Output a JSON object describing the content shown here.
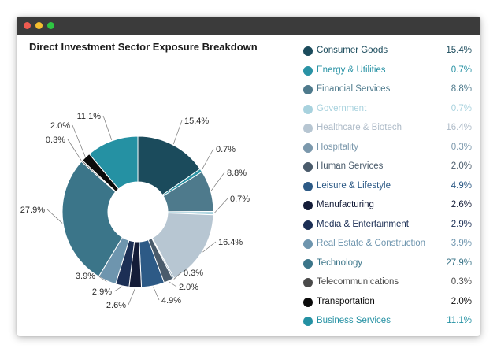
{
  "window": {
    "controls": [
      "close-dot",
      "minimize-dot",
      "maximize-dot"
    ],
    "titlebar_color": "#3b3b3b"
  },
  "chart_data": {
    "type": "pie",
    "variant": "donut",
    "title": "Direct Investment Sector Exposure Breakdown",
    "legend_placement": "right",
    "slices": [
      {
        "label": "Consumer Goods",
        "value": 15.4,
        "display": "15.4%",
        "color": "#1b4b5c",
        "text_color": "#1b4b5c"
      },
      {
        "label": "Energy & Utilities",
        "value": 0.7,
        "display": "0.7%",
        "color": "#2a93a5",
        "text_color": "#2a93a5"
      },
      {
        "label": "Financial Services",
        "value": 8.8,
        "display": "8.8%",
        "color": "#4e7a8c",
        "text_color": "#4e7a8c"
      },
      {
        "label": "Government",
        "value": 0.7,
        "display": "0.7%",
        "color": "#a8d2de",
        "text_color": "#a8d2de"
      },
      {
        "label": "Healthcare & Biotech",
        "value": 16.4,
        "display": "16.4%",
        "color": "#b7c6d2",
        "text_color": "#aebbc8"
      },
      {
        "label": "Hospitality",
        "value": 0.3,
        "display": "0.3%",
        "color": "#7b98ac",
        "text_color": "#7b98ac"
      },
      {
        "label": "Human Services",
        "value": 2.0,
        "display": "2.0%",
        "color": "#4a5b6b",
        "text_color": "#4a5b6b"
      },
      {
        "label": "Leisure & Lifestyle",
        "value": 4.9,
        "display": "4.9%",
        "color": "#2d5a86",
        "text_color": "#2d5a86"
      },
      {
        "label": "Manufacturing",
        "value": 2.6,
        "display": "2.6%",
        "color": "#141c38",
        "text_color": "#141c38"
      },
      {
        "label": "Media & Entertainment",
        "value": 2.9,
        "display": "2.9%",
        "color": "#1c2f55",
        "text_color": "#1c2f55"
      },
      {
        "label": "Real Estate & Construction",
        "value": 3.9,
        "display": "3.9%",
        "color": "#6e95ae",
        "text_color": "#6e95ae"
      },
      {
        "label": "Technology",
        "value": 27.9,
        "display": "27.9%",
        "color": "#3b7589",
        "text_color": "#3b7589"
      },
      {
        "label": "Telecommunications",
        "value": 0.3,
        "display": "0.3%",
        "color": "#4a4a4a",
        "text_color": "#4a4a4a"
      },
      {
        "label": "Transportation",
        "value": 2.0,
        "display": "2.0%",
        "color": "#0b0b0b",
        "text_color": "#0b0b0b"
      },
      {
        "label": "Business Services",
        "value": 11.1,
        "display": "11.1%",
        "color": "#2591a3",
        "text_color": "#2591a3"
      }
    ]
  }
}
